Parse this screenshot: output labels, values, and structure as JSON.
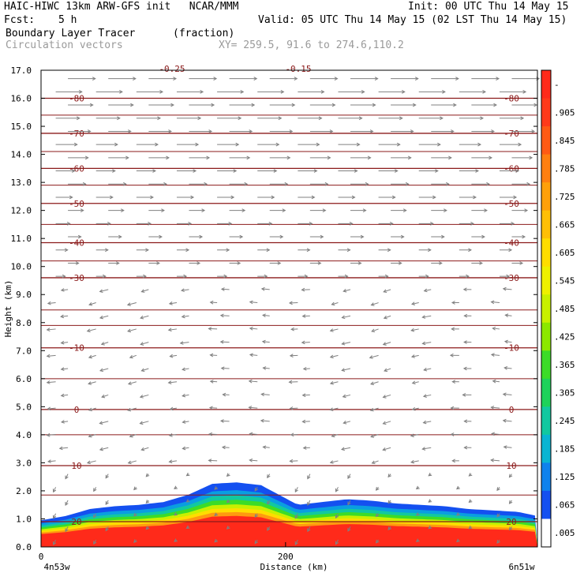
{
  "header": {
    "title_left": "HAIC-HIWC 13km ARW-GFS init   NCAR/MMM",
    "init": "Init: 00 UTC Thu 14 May 15",
    "fcst_label": "Fcst:",
    "fcst_value": "5 h",
    "valid": "Valid: 05 UTC Thu 14 May 15 (02 LST Thu 14 May 15)",
    "field_name": "Boundary Layer Tracer",
    "field_units": "(fraction)",
    "vector_label": "Circulation vectors",
    "xy_label": "XY= 259.5, 91.6 to 274.6,110.2"
  },
  "chart_data": {
    "type": "heatmap",
    "ylabel": "Height (km)",
    "xlabel": "Distance (km)",
    "ylim": [
      0,
      17
    ],
    "xlim": [
      0,
      406
    ],
    "y_ticks": [
      "0.0",
      "1.0",
      "2.0",
      "3.0",
      "4.0",
      "5.0",
      "6.0",
      "7.0",
      "8.0",
      "9.0",
      "10.0",
      "11.0",
      "12.0",
      "13.0",
      "14.0",
      "15.0",
      "16.0",
      "17.0"
    ],
    "x_ticks": [
      {
        "value": 0,
        "label": "0"
      },
      {
        "value": 200,
        "label": "200"
      }
    ],
    "x_end_labels": {
      "left": "4n53w",
      "right": "6n51w"
    },
    "colorbar_labels": [
      "-",
      ".905",
      ".845",
      ".785",
      ".725",
      ".665",
      ".605",
      ".545",
      ".485",
      ".425",
      ".365",
      ".305",
      ".245",
      ".185",
      ".125",
      ".065",
      ".005"
    ],
    "colorbar_colors": [
      "#ff2a1a",
      "#ff3a1a",
      "#ff5a14",
      "#ff7f10",
      "#ffa00a",
      "#ffbf05",
      "#ffdd00",
      "#eef000",
      "#c8f000",
      "#8ce800",
      "#3cdc28",
      "#1ed25a",
      "#12c8a0",
      "#0ab4d2",
      "#0f82ec",
      "#1450f0",
      "#ffffff"
    ],
    "temperature_contours": [
      {
        "label": "-80",
        "y": 16.0
      },
      {
        "label": "-70",
        "y": 14.75
      },
      {
        "label": "-60",
        "y": 13.5
      },
      {
        "label": "-50",
        "y": 12.25
      },
      {
        "label": "-40",
        "y": 10.85
      },
      {
        "label": "-30",
        "y": 9.6
      },
      {
        "label": "-10",
        "y": 7.1
      },
      {
        "label": "0",
        "y": 4.9
      },
      {
        "label": "10",
        "y": 2.9
      },
      {
        "label": "20",
        "y": 0.9
      }
    ],
    "top_labels": [
      "-0.25",
      "-0.15"
    ],
    "tracer_top_km": [
      [
        0,
        0.95
      ],
      [
        20,
        1.1
      ],
      [
        40,
        1.35
      ],
      [
        60,
        1.45
      ],
      [
        80,
        1.5
      ],
      [
        100,
        1.6
      ],
      [
        120,
        1.85
      ],
      [
        140,
        2.25
      ],
      [
        160,
        2.3
      ],
      [
        180,
        2.2
      ],
      [
        195,
        1.85
      ],
      [
        210,
        1.5
      ],
      [
        230,
        1.6
      ],
      [
        250,
        1.7
      ],
      [
        270,
        1.65
      ],
      [
        290,
        1.55
      ],
      [
        310,
        1.5
      ],
      [
        330,
        1.45
      ],
      [
        350,
        1.35
      ],
      [
        370,
        1.3
      ],
      [
        390,
        1.25
      ],
      [
        406,
        1.1
      ]
    ],
    "grid": false
  }
}
